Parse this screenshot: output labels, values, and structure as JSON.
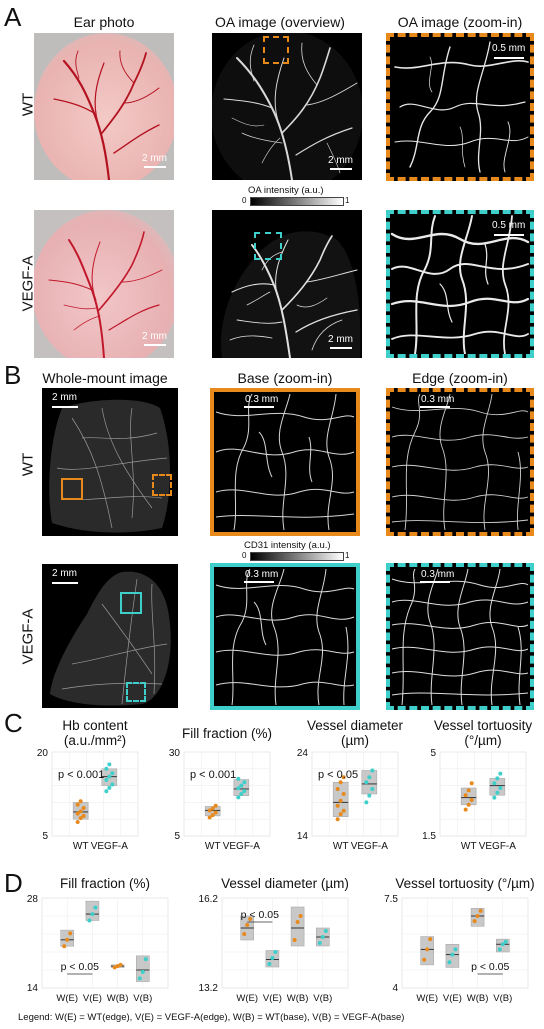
{
  "panelA": {
    "letter": "A",
    "col_titles": [
      "Ear photo",
      "OA image (overview)",
      "OA image (zoom-in)"
    ],
    "row_labels": [
      "WT",
      "VEGF-A"
    ],
    "scalebars": {
      "photo": "2 mm",
      "overview": "2 mm",
      "zoom": "0.5 mm"
    },
    "colorbar": {
      "label": "OA intensity (a.u.)",
      "min": "0",
      "max": "1"
    }
  },
  "panelB": {
    "letter": "B",
    "col_titles": [
      "Whole-mount image",
      "Base (zoom-in)",
      "Edge (zoom-in)"
    ],
    "row_labels": [
      "WT",
      "VEGF-A"
    ],
    "scalebars": {
      "whole": "2 mm",
      "zoom": "0.3 mm"
    },
    "colorbar": {
      "label": "CD31 intensity (a.u.)",
      "min": "0",
      "max": "1"
    }
  },
  "colors": {
    "wt": "#E8891C",
    "vegf": "#3ECFCB",
    "box": "#c8c8c8"
  },
  "chart_data": [
    {
      "type": "scatter",
      "panel": "C",
      "title": "Hb content",
      "title2": "(a.u./mm²)",
      "categories": [
        "WT",
        "VEGF-A"
      ],
      "ylim": [
        5,
        20
      ],
      "yticks": [
        "20",
        "5"
      ],
      "pvalue": "p < 0.001",
      "series": [
        {
          "name": "WT",
          "values": [
            7.5,
            8.2,
            8.6,
            9.0,
            9.4,
            10.0,
            10.6,
            11.2
          ],
          "box": [
            8.0,
            9.3,
            11.0
          ]
        },
        {
          "name": "VEGF-A",
          "values": [
            13.0,
            13.6,
            14.2,
            15.0,
            15.6,
            16.2,
            17.0,
            17.8
          ],
          "box": [
            14.0,
            15.6,
            17.0
          ]
        }
      ]
    },
    {
      "type": "scatter",
      "panel": "C",
      "title": "Fill fraction (%)",
      "title2": "",
      "categories": [
        "WT",
        "VEGF-A"
      ],
      "ylim": [
        5,
        30
      ],
      "yticks": [
        "30",
        "5"
      ],
      "pvalue": "p < 0.001",
      "series": [
        {
          "name": "WT",
          "values": [
            10.5,
            11.2,
            12.0,
            12.6,
            13.2,
            14.0
          ],
          "box": [
            11.0,
            12.6,
            13.8
          ]
        },
        {
          "name": "VEGF-A",
          "values": [
            16.5,
            17.5,
            18.4,
            19.2,
            20.0,
            21.0,
            22.0
          ],
          "box": [
            17.0,
            19.0,
            21.8
          ]
        }
      ]
    },
    {
      "type": "scatter",
      "panel": "C",
      "title": "Vessel diameter",
      "title2": "(µm)",
      "categories": [
        "WT",
        "VEGF-A"
      ],
      "ylim": [
        14,
        24
      ],
      "yticks": [
        "24",
        "14"
      ],
      "pvalue": "p < 0.05",
      "series": [
        {
          "name": "WT",
          "values": [
            16.0,
            16.6,
            17.0,
            17.6,
            18.2,
            19.0,
            19.6,
            20.4,
            21.0
          ],
          "box": [
            16.3,
            18.0,
            20.4
          ]
        },
        {
          "name": "VEGF-A",
          "values": [
            18.0,
            18.8,
            19.6,
            20.4,
            21.0,
            21.8
          ],
          "box": [
            19.0,
            20.2,
            21.8
          ]
        }
      ]
    },
    {
      "type": "scatter",
      "panel": "C",
      "title": "Vessel tortuosity",
      "title2": "(°/µm)",
      "categories": [
        "WT",
        "VEGF-A"
      ],
      "ylim": [
        1.5,
        5
      ],
      "yticks": [
        "5",
        "1.5"
      ],
      "pvalue": "",
      "series": [
        {
          "name": "WT",
          "values": [
            2.6,
            2.8,
            3.0,
            3.2,
            3.4,
            3.7
          ],
          "box": [
            2.8,
            3.1,
            3.5
          ]
        },
        {
          "name": "VEGF-A",
          "values": [
            3.1,
            3.3,
            3.5,
            3.7,
            3.9,
            4.1
          ],
          "box": [
            3.2,
            3.6,
            3.9
          ]
        }
      ]
    },
    {
      "type": "scatter",
      "panel": "D",
      "title": "Fill fraction (%)",
      "categories": [
        "W(E)",
        "V(E)",
        "W(B)",
        "V(B)"
      ],
      "ylim": [
        14,
        28
      ],
      "yticks": [
        "28",
        "14"
      ],
      "pvalue": "p < 0.05",
      "pvalue_pair": [
        0,
        1
      ],
      "series": [
        {
          "name": "W(E)",
          "values": [
            20.5,
            21.5,
            22.5
          ],
          "box": [
            20.5,
            21.5,
            23.0
          ]
        },
        {
          "name": "V(E)",
          "values": [
            24.5,
            25.5,
            26.5
          ],
          "box": [
            24.5,
            25.5,
            27.5
          ]
        },
        {
          "name": "W(B)",
          "values": [
            17.2,
            17.4,
            17.6
          ],
          "box": [
            17.2,
            17.4,
            17.6
          ]
        },
        {
          "name": "V(B)",
          "values": [
            15.5,
            16.5,
            18.5
          ],
          "box": [
            15.0,
            16.8,
            19.0
          ]
        }
      ]
    },
    {
      "type": "scatter",
      "panel": "D",
      "title": "Vessel diameter (µm)",
      "categories": [
        "W(E)",
        "V(E)",
        "W(B)",
        "V(B)"
      ],
      "ylim": [
        13.2,
        16.2
      ],
      "yticks": [
        "16.2",
        "13.2"
      ],
      "pvalue": "p < 0.05",
      "pvalue_pair": [
        0,
        1
      ],
      "series": [
        {
          "name": "W(E)",
          "values": [
            15.0,
            15.3,
            15.5
          ],
          "box": [
            14.8,
            15.2,
            15.6
          ]
        },
        {
          "name": "V(E)",
          "values": [
            14.0,
            14.2,
            14.4
          ],
          "box": [
            13.9,
            14.15,
            14.45
          ]
        },
        {
          "name": "W(B)",
          "values": [
            14.8,
            15.4,
            15.6
          ],
          "box": [
            14.6,
            15.2,
            15.9
          ]
        },
        {
          "name": "V(B)",
          "values": [
            14.7,
            14.9,
            15.1
          ],
          "box": [
            14.6,
            14.9,
            15.2
          ]
        }
      ]
    },
    {
      "type": "scatter",
      "panel": "D",
      "title": "Vessel tortuosity (°/µm)",
      "categories": [
        "W(E)",
        "V(E)",
        "W(B)",
        "V(B)"
      ],
      "ylim": [
        4,
        7.5
      ],
      "yticks": [
        "7.5",
        "4"
      ],
      "pvalue": "p < 0.05",
      "pvalue_pair": [
        2,
        3
      ],
      "series": [
        {
          "name": "W(E)",
          "values": [
            5.1,
            5.5,
            5.9
          ],
          "box": [
            4.9,
            5.5,
            6.0
          ]
        },
        {
          "name": "V(E)",
          "values": [
            5.0,
            5.3,
            5.5
          ],
          "box": [
            4.8,
            5.3,
            5.7
          ]
        },
        {
          "name": "W(B)",
          "values": [
            6.6,
            6.8,
            7.0
          ],
          "box": [
            6.4,
            6.8,
            7.1
          ]
        },
        {
          "name": "V(B)",
          "values": [
            5.5,
            5.7,
            5.8
          ],
          "box": [
            5.4,
            5.7,
            5.9
          ]
        }
      ]
    }
  ],
  "panelC": {
    "letter": "C"
  },
  "panelD": {
    "letter": "D"
  },
  "legend": "Legend: W(E) = WT(edge), V(E) = VEGF-A(edge), W(B) = WT(base), V(B) = VEGF-A(base)"
}
